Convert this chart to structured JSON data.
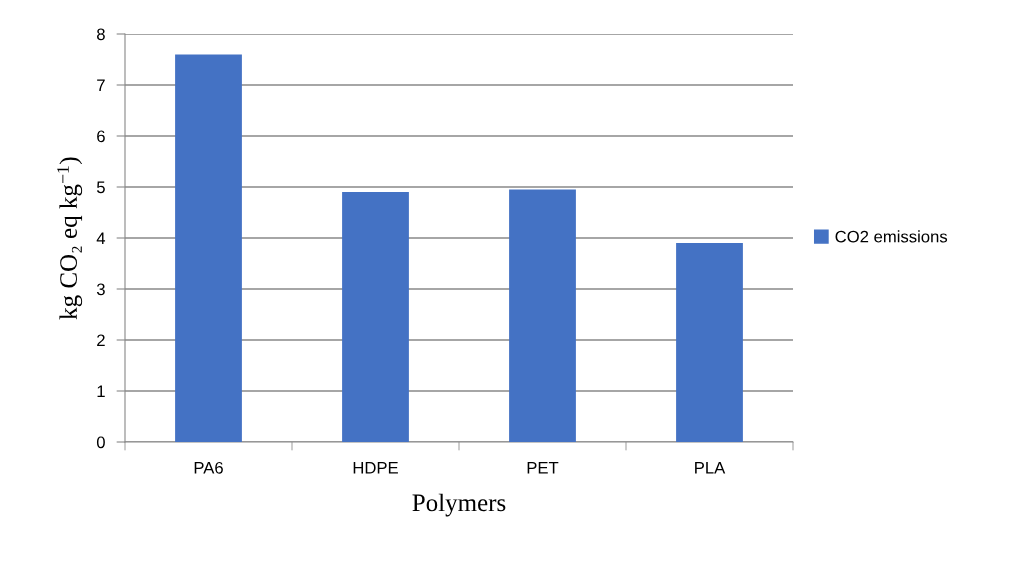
{
  "chart_data": {
    "type": "bar",
    "xlabel": "Polymers",
    "ylabel": "kg CO₂ eq kg$^{−1}$)",
    "categories": [
      "PA6",
      "HDPE",
      "PET",
      "PLA"
    ],
    "series": [
      {
        "name": "CO2 emissions",
        "color": "#4472c4",
        "values": [
          7.6,
          4.9,
          4.95,
          3.9
        ]
      }
    ],
    "ylim": [
      0,
      8
    ],
    "yticks": [
      0,
      1,
      2,
      3,
      4,
      5,
      6,
      7,
      8
    ],
    "grid": "y",
    "legend": "right"
  }
}
